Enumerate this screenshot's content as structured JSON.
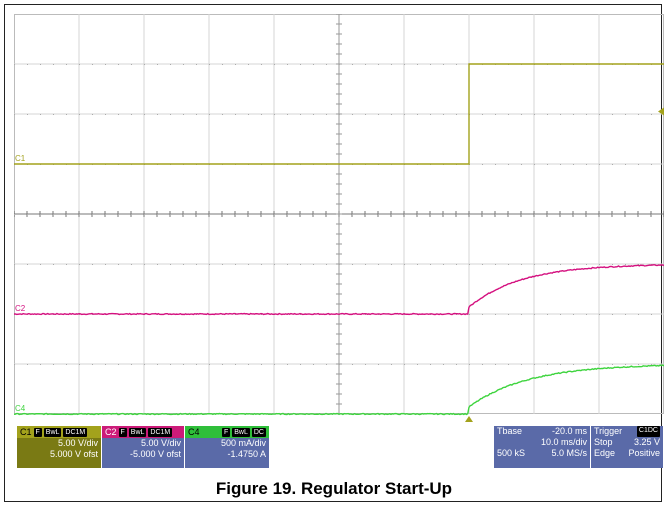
{
  "chart_data": {
    "type": "line",
    "title": "Figure 19. Regulator Start-Up",
    "x_range_ms": [
      -70,
      30
    ],
    "trigger_time_ms": 0,
    "grid": true,
    "divisions": {
      "x": 10,
      "y": 8
    },
    "series": [
      {
        "name": "C1",
        "color": "#a3a21c",
        "label": "C1",
        "level_before_div": -1.0,
        "level_after_div": 1.0,
        "shape": "step"
      },
      {
        "name": "C2",
        "color": "#d4107f",
        "label": "C2",
        "level_before_div": -1.0,
        "level_after_div": 0.0,
        "jump_div": 0.14,
        "tau_ms": 8,
        "shape": "exp"
      },
      {
        "name": "C4",
        "color": "#3ed43e",
        "label": "C4",
        "level_before_div": -1.0,
        "level_after_div": 0.0,
        "jump_div": 0.14,
        "tau_ms": 9,
        "shape": "exp"
      }
    ]
  },
  "channels": {
    "c1": {
      "name": "C1",
      "tags": [
        "F",
        "BwL",
        "DC1M"
      ],
      "vdiv": "5.00 V/div",
      "offset": "5.000 V ofst"
    },
    "c2": {
      "name": "C2",
      "tags": [
        "F",
        "BwL",
        "DC1M"
      ],
      "vdiv": "5.00 V/div",
      "offset": "-5.000 V ofst"
    },
    "c4": {
      "name": "C4",
      "tags": [
        "F",
        "BwL",
        "DC"
      ],
      "vdiv": "500 mA/div",
      "offset": "-1.4750 A"
    }
  },
  "timebase": {
    "label": "Tbase",
    "value": "-20.0 ms",
    "div": "10.0 ms/div",
    "samples": "500 kS",
    "rate": "5.0 MS/s"
  },
  "trigger": {
    "label": "Trigger",
    "channel": "C1",
    "coupling": "DC",
    "mode": "Stop",
    "level": "3.25 V",
    "type": "Edge",
    "slope": "Positive"
  },
  "caption": "Figure 19. Regulator Start-Up"
}
